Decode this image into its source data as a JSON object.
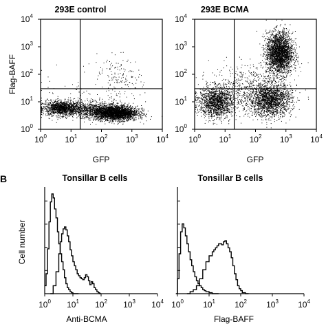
{
  "panel_b_label": "B",
  "chart_data": [
    {
      "type": "scatter",
      "title": "293E control",
      "xlabel": "GFP",
      "ylabel": "Flag-BAFF",
      "xscale": "log",
      "yscale": "log",
      "xlim": [
        1,
        10000
      ],
      "ylim": [
        1,
        10000
      ],
      "xticks": [
        [
          "10",
          "0"
        ],
        [
          "10",
          "1"
        ],
        [
          "10",
          "2"
        ],
        [
          "10",
          "3"
        ],
        [
          "10",
          "4"
        ]
      ],
      "yticks": [
        [
          "10",
          "0"
        ],
        [
          "10",
          "1"
        ],
        [
          "10",
          "2"
        ],
        [
          "10",
          "3"
        ],
        [
          "10",
          "4"
        ]
      ],
      "gate": {
        "x": 20,
        "y": 30
      },
      "grid": false,
      "populations": [
        {
          "name": "",
          "cx": 5,
          "cy": 6,
          "sx": 0.32,
          "sy": 0.13,
          "n": 1400
        },
        {
          "name": "",
          "cx": 300,
          "cy": 4,
          "sx": 0.35,
          "sy": 0.13,
          "n": 2600
        },
        {
          "name": "",
          "cx": 60,
          "cy": 5,
          "sx": 0.45,
          "sy": 0.15,
          "n": 900
        },
        {
          "name": "",
          "cx": 400,
          "cy": 70,
          "sx": 0.35,
          "sy": 0.4,
          "n": 150
        },
        {
          "name": "",
          "cx": 30,
          "cy": 40,
          "sx": 0.9,
          "sy": 0.45,
          "n": 60
        }
      ]
    },
    {
      "type": "scatter",
      "title": "293E BCMA",
      "xlabel": "GFP",
      "ylabel": "",
      "xscale": "log",
      "yscale": "log",
      "xlim": [
        1,
        10000
      ],
      "ylim": [
        1,
        10000
      ],
      "xticks": [
        [
          "10",
          "0"
        ],
        [
          "10",
          "1"
        ],
        [
          "10",
          "2"
        ],
        [
          "10",
          "3"
        ],
        [
          "10",
          "4"
        ]
      ],
      "yticks": [
        [
          "10",
          "0"
        ],
        [
          "10",
          "1"
        ],
        [
          "10",
          "2"
        ],
        [
          "10",
          "3"
        ],
        [
          "10",
          "4"
        ]
      ],
      "gate": {
        "x": 20,
        "y": 30
      },
      "grid": false,
      "populations": [
        {
          "name": "",
          "cx": 5,
          "cy": 10,
          "sx": 0.28,
          "sy": 0.28,
          "n": 1500
        },
        {
          "name": "",
          "cx": 600,
          "cy": 600,
          "sx": 0.22,
          "sy": 0.38,
          "n": 2600
        },
        {
          "name": "",
          "cx": 300,
          "cy": 12,
          "sx": 0.35,
          "sy": 0.3,
          "n": 1900
        },
        {
          "name": "",
          "cx": 40,
          "cy": 30,
          "sx": 0.55,
          "sy": 0.45,
          "n": 500
        }
      ]
    },
    {
      "type": "line",
      "title": "Tonsillar B cells",
      "xlabel": "Anti-BCMA",
      "ylabel": "Cell number",
      "xscale": "log",
      "xlim": [
        1,
        10000
      ],
      "xticks": [
        [
          "10",
          "0"
        ],
        [
          "10",
          "1"
        ],
        [
          "10",
          "2"
        ],
        [
          "10",
          "3"
        ],
        [
          "10",
          "4"
        ]
      ],
      "series": [
        {
          "name": "",
          "log_x": [
            0.0,
            0.05,
            0.1,
            0.15,
            0.2,
            0.25,
            0.3,
            0.35,
            0.4,
            0.45,
            0.5,
            0.55,
            0.6,
            0.65,
            0.7,
            0.75,
            0.8,
            0.85,
            0.9,
            0.95,
            1.0,
            1.05,
            1.1,
            1.15,
            1.2
          ],
          "values": [
            8,
            20,
            45,
            72,
            92,
            100,
            96,
            85,
            76,
            62,
            50,
            40,
            32,
            24,
            16,
            10,
            6,
            4,
            2,
            1,
            0,
            0,
            0,
            0,
            0
          ]
        },
        {
          "name": "",
          "log_x": [
            0.2,
            0.3,
            0.4,
            0.5,
            0.55,
            0.6,
            0.65,
            0.7,
            0.75,
            0.8,
            0.85,
            0.9,
            0.95,
            1.0,
            1.05,
            1.1,
            1.15,
            1.2,
            1.25,
            1.3,
            1.35,
            1.4,
            1.45,
            1.5,
            1.55,
            1.6,
            1.65,
            1.7,
            1.75,
            1.8,
            1.85,
            1.9,
            1.95,
            2.0
          ],
          "values": [
            0,
            8,
            22,
            40,
            52,
            60,
            65,
            67,
            64,
            58,
            52,
            44,
            38,
            32,
            28,
            24,
            20,
            18,
            16,
            15,
            14,
            16,
            19,
            17,
            13,
            9,
            12,
            10,
            6,
            4,
            2,
            1,
            0,
            0
          ]
        }
      ]
    },
    {
      "type": "line",
      "title": "Tonsillar B cells",
      "xlabel": "Flag-BAFF",
      "ylabel": "",
      "xscale": "log",
      "xlim": [
        1,
        10000
      ],
      "xticks": [
        [
          "10",
          "0"
        ],
        [
          "10",
          "1"
        ],
        [
          "10",
          "2"
        ],
        [
          "10",
          "3"
        ],
        [
          "10",
          "4"
        ]
      ],
      "series": [
        {
          "name": "",
          "log_x": [
            -0.05,
            0.0,
            0.05,
            0.1,
            0.15,
            0.2,
            0.25,
            0.3,
            0.35,
            0.4,
            0.45,
            0.5,
            0.55,
            0.6,
            0.65,
            0.7,
            0.75,
            0.8,
            0.85,
            0.9,
            0.95,
            1.0,
            1.05,
            1.1,
            1.15,
            1.2,
            1.25,
            1.3
          ],
          "values": [
            0,
            15,
            40,
            62,
            70,
            66,
            58,
            50,
            42,
            34,
            28,
            22,
            17,
            13,
            10,
            8,
            6,
            4,
            3,
            2,
            2,
            1,
            1,
            0,
            0,
            0,
            0,
            0
          ]
        },
        {
          "name": "",
          "log_x": [
            0.3,
            0.4,
            0.5,
            0.6,
            0.7,
            0.8,
            0.9,
            1.0,
            1.1,
            1.15,
            1.2,
            1.25,
            1.3,
            1.35,
            1.4,
            1.45,
            1.5,
            1.55,
            1.6,
            1.65,
            1.7,
            1.75,
            1.8,
            1.85,
            1.9,
            1.95,
            2.0,
            2.05,
            2.1,
            2.15,
            2.2,
            2.25
          ],
          "values": [
            0,
            2,
            4,
            8,
            15,
            24,
            32,
            38,
            42,
            44,
            46,
            48,
            50,
            50,
            49,
            52,
            53,
            50,
            46,
            42,
            36,
            28,
            20,
            14,
            8,
            5,
            3,
            1,
            1,
            0,
            0,
            0
          ]
        }
      ]
    }
  ]
}
